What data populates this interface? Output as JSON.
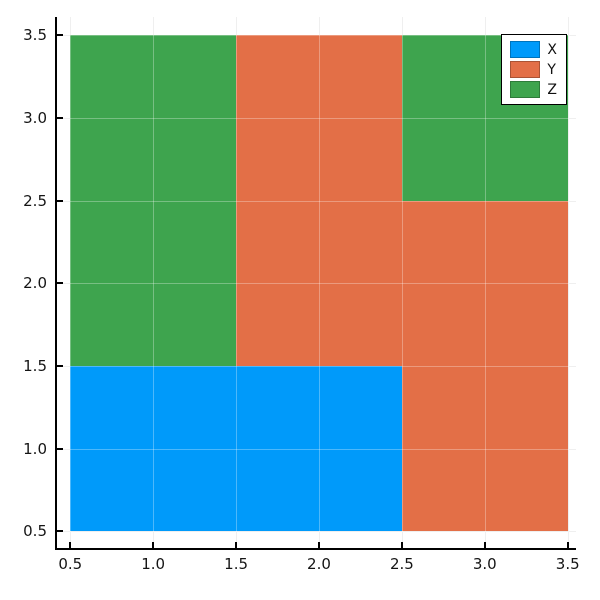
{
  "chart_data": {
    "type": "heatmap",
    "title": "",
    "xlabel": "",
    "ylabel": "",
    "x_centers": [
      1,
      2,
      3
    ],
    "y_centers": [
      1,
      2,
      3
    ],
    "cell_size": 1,
    "xlim": [
      0.42,
      3.55
    ],
    "ylim": [
      0.4,
      3.61
    ],
    "xticks": [
      0.5,
      1.0,
      1.5,
      2.0,
      2.5,
      3.0,
      3.5
    ],
    "yticks": [
      0.5,
      1.0,
      1.5,
      2.0,
      2.5,
      3.0,
      3.5
    ],
    "xtick_labels": [
      "0.5",
      "1.0",
      "1.5",
      "2.0",
      "2.5",
      "3.0",
      "3.5"
    ],
    "ytick_labels": [
      "0.5",
      "1.0",
      "1.5",
      "2.0",
      "2.5",
      "3.0",
      "3.5"
    ],
    "grid": true,
    "legend_position": "top-right",
    "categories": [
      "X",
      "Y",
      "Z"
    ],
    "category_colors": {
      "X": "#009AFA",
      "Y": "#E36F47",
      "Z": "#3EA44E"
    },
    "cells": [
      {
        "x": 1,
        "y": 1,
        "value": "X"
      },
      {
        "x": 2,
        "y": 1,
        "value": "X"
      },
      {
        "x": 3,
        "y": 1,
        "value": "Y"
      },
      {
        "x": 1,
        "y": 2,
        "value": "Z"
      },
      {
        "x": 2,
        "y": 2,
        "value": "Y"
      },
      {
        "x": 3,
        "y": 2,
        "value": "Y"
      },
      {
        "x": 1,
        "y": 3,
        "value": "Z"
      },
      {
        "x": 2,
        "y": 3,
        "value": "Y"
      },
      {
        "x": 3,
        "y": 3,
        "value": "Z"
      }
    ]
  },
  "legend": {
    "entries": [
      {
        "label": "X",
        "color": "#009AFA"
      },
      {
        "label": "Y",
        "color": "#E36F47"
      },
      {
        "label": "Z",
        "color": "#3EA44E"
      }
    ]
  }
}
